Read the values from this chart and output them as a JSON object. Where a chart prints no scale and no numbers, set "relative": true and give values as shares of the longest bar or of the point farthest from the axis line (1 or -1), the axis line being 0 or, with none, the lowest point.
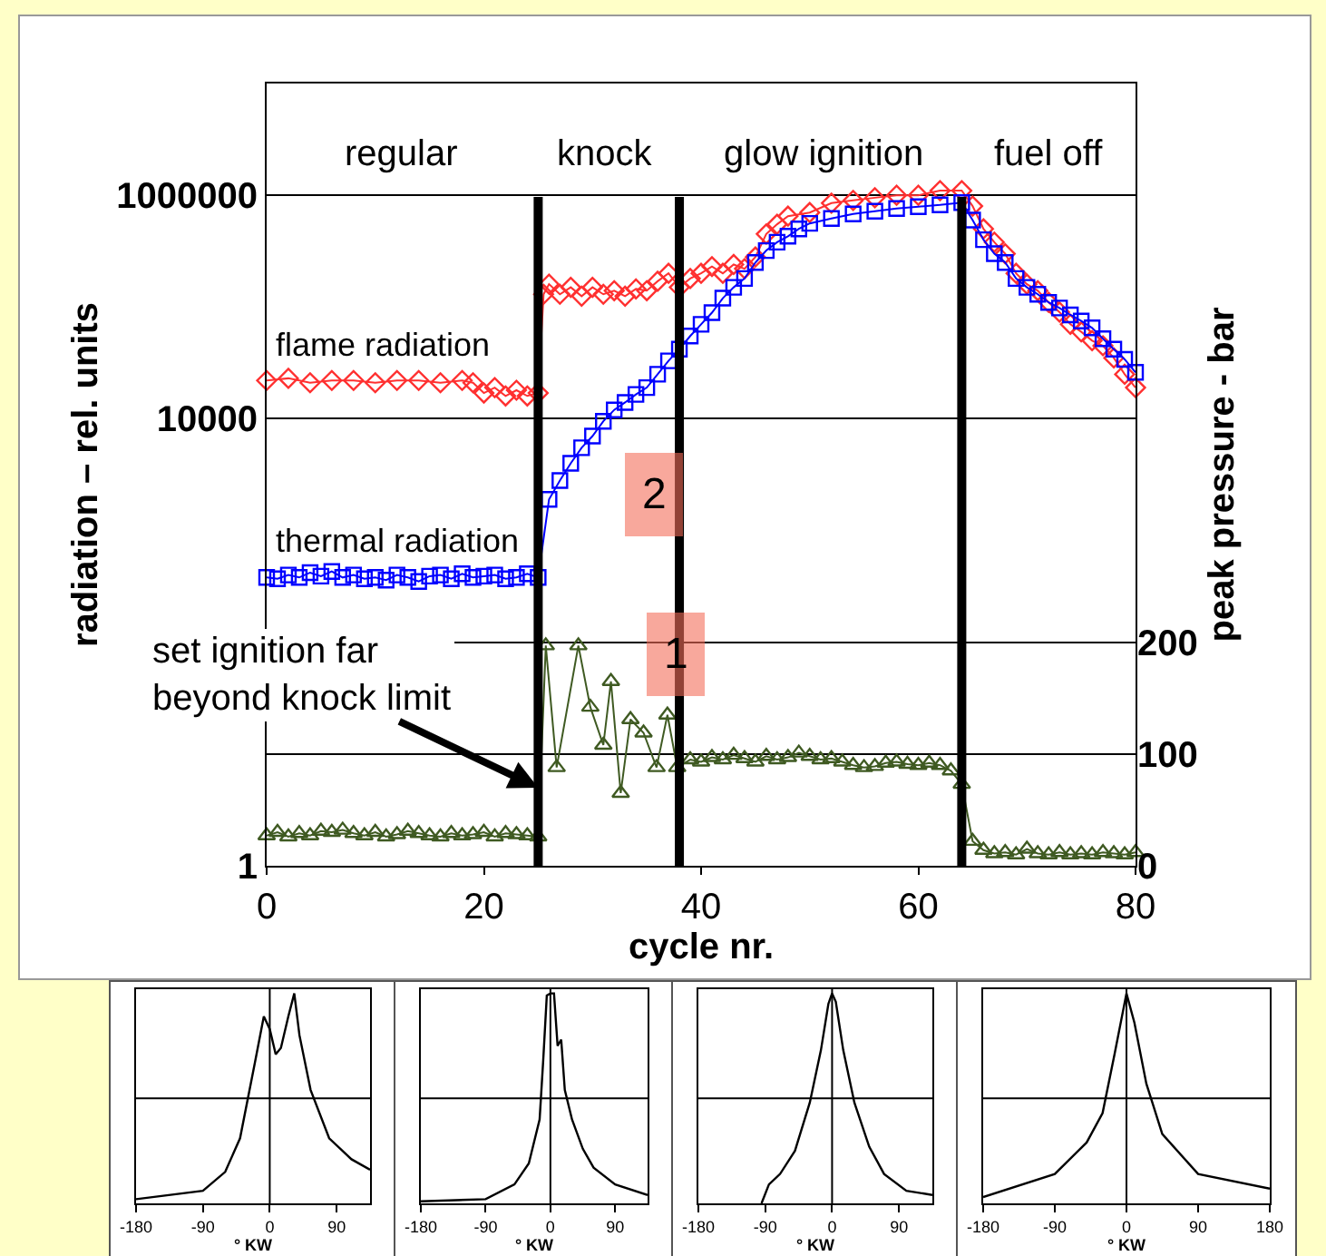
{
  "chart_data": [
    {
      "type": "line",
      "xlabel": "cycle nr.",
      "ylabel": "radiation – rel. units",
      "y2label": "peak pressure - bar",
      "log": "y",
      "xlim": [
        0,
        80
      ],
      "xticks": [
        0,
        20,
        40,
        60,
        80
      ],
      "ylim": [
        1,
        10000000
      ],
      "yticks": [
        1,
        10000,
        1000000
      ],
      "y2lim": [
        0,
        700
      ],
      "y2ticks": [
        0,
        100,
        200
      ],
      "grid": "y",
      "line_style": "solid",
      "series": [
        {
          "name": "flame radiation",
          "color": "#ff3030",
          "marker": "diamond",
          "x": [
            0,
            2,
            4,
            6,
            8,
            10,
            12,
            14,
            16,
            18,
            19,
            20,
            21,
            22,
            23,
            24,
            25,
            25.5,
            26,
            27,
            28,
            29,
            30,
            31,
            32,
            33,
            34,
            35,
            36,
            37,
            38,
            39,
            40,
            41,
            42,
            43,
            44,
            45,
            46,
            47,
            48,
            50,
            52,
            54,
            56,
            58,
            60,
            62,
            64,
            65,
            66,
            67,
            68,
            69,
            70,
            71,
            72,
            73,
            74,
            75,
            76,
            77,
            78,
            79,
            80
          ],
          "values": [
            22000,
            23000,
            21000,
            22000,
            22000,
            21000,
            22000,
            22000,
            21000,
            22000,
            21000,
            17000,
            19000,
            16000,
            18000,
            16000,
            17000,
            130000,
            160000,
            130000,
            150000,
            125000,
            150000,
            130000,
            140000,
            125000,
            145000,
            140000,
            170000,
            200000,
            150000,
            180000,
            200000,
            230000,
            200000,
            240000,
            220000,
            280000,
            450000,
            550000,
            650000,
            700000,
            850000,
            900000,
            950000,
            1000000,
            1000000,
            1100000,
            1100000,
            800000,
            500000,
            380000,
            300000,
            200000,
            160000,
            140000,
            110000,
            90000,
            70000,
            60000,
            50000,
            45000,
            35000,
            25000,
            19000
          ]
        },
        {
          "name": "thermal radiation",
          "color": "#0000ff",
          "marker": "square",
          "x": [
            0,
            1,
            2,
            3,
            4,
            5,
            6,
            7,
            8,
            9,
            10,
            11,
            12,
            13,
            14,
            15,
            16,
            17,
            18,
            19,
            20,
            21,
            22,
            23,
            24,
            25,
            26,
            27,
            28,
            29,
            30,
            31,
            32,
            33,
            34,
            35,
            36,
            37,
            38,
            39,
            40,
            41,
            42,
            43,
            44,
            45,
            46,
            47,
            48,
            49,
            50,
            52,
            54,
            56,
            58,
            60,
            62,
            64,
            65,
            66,
            67,
            68,
            69,
            70,
            71,
            72,
            73,
            74,
            75,
            76,
            77,
            78,
            79,
            80
          ],
          "values": [
            380,
            370,
            400,
            380,
            420,
            390,
            430,
            380,
            400,
            370,
            380,
            360,
            400,
            380,
            350,
            390,
            400,
            370,
            410,
            380,
            390,
            400,
            370,
            380,
            410,
            380,
            1900,
            2800,
            4000,
            5500,
            7000,
            9500,
            12000,
            14000,
            16500,
            19000,
            25000,
            33000,
            42000,
            55000,
            70000,
            89000,
            120000,
            150000,
            180000,
            250000,
            320000,
            380000,
            430000,
            500000,
            560000,
            620000,
            680000,
            720000,
            760000,
            790000,
            820000,
            860000,
            600000,
            400000,
            300000,
            250000,
            180000,
            150000,
            130000,
            110000,
            98000,
            85000,
            75000,
            65000,
            52000,
            42000,
            34000,
            26000
          ]
        },
        {
          "color": "#3f5a22",
          "marker": "triangle",
          "axis": "y2",
          "x": [
            0,
            1,
            2,
            3,
            4,
            5,
            6,
            7,
            8,
            9,
            10,
            11,
            12,
            13,
            14,
            15,
            16,
            17,
            18,
            19,
            20,
            21,
            22,
            23,
            24,
            25,
            25.7,
            26.7,
            28.7,
            29.8,
            31,
            31.7,
            32.6,
            33.5,
            34.7,
            35.9,
            36.9,
            37.8,
            39,
            40,
            41,
            42,
            43,
            44,
            45,
            46,
            47,
            48,
            49,
            50,
            51,
            52,
            53,
            54,
            55,
            56,
            57,
            58,
            59,
            60,
            61,
            62,
            63,
            64,
            65,
            66,
            67,
            68,
            69,
            70,
            71,
            72,
            73,
            74,
            75,
            76,
            77,
            78,
            79,
            80
          ],
          "values": [
            27,
            30,
            26,
            29,
            27,
            31,
            30,
            32,
            29,
            27,
            30,
            26,
            28,
            31,
            29,
            27,
            26,
            29,
            27,
            28,
            30,
            26,
            29,
            28,
            27,
            26,
            197,
            88,
            197,
            142,
            108,
            165,
            65,
            131,
            119,
            88,
            135,
            88,
            95,
            93,
            97,
            95,
            99,
            96,
            93,
            98,
            95,
            97,
            101,
            98,
            95,
            96,
            93,
            90,
            88,
            89,
            92,
            93,
            91,
            90,
            92,
            90,
            85,
            73,
            22,
            14,
            11,
            12,
            10,
            15,
            11,
            10,
            12,
            10,
            11,
            10,
            12,
            11,
            10,
            12
          ]
        }
      ],
      "ref_lines": [
        {
          "axis": "x",
          "value": 25
        },
        {
          "axis": "x",
          "value": 38
        },
        {
          "axis": "x",
          "value": 64
        }
      ],
      "annotations": [
        "regular",
        "knock",
        "glow ignition",
        "fuel off",
        "2",
        "1",
        {
          "text": "set ignition far\nbeyond knock limit",
          "x": 25,
          "y": 5
        }
      ]
    },
    {
      "type": "line",
      "relative": true,
      "xlabel": "° KW",
      "xlim": [
        -180,
        135
      ],
      "xticks": [
        -180,
        -90,
        0,
        90
      ],
      "ref_lines": [
        {
          "axis": "x",
          "value": 0
        },
        {
          "axis": "y",
          "value": 0.5
        }
      ],
      "series": [
        {
          "color": "#000000",
          "x": [
            -180,
            -90,
            -60,
            -40,
            -20,
            -8,
            0,
            8,
            15,
            25,
            33,
            40,
            55,
            80,
            110,
            135
          ],
          "values": [
            0.02,
            0.06,
            0.15,
            0.31,
            0.67,
            0.89,
            0.83,
            0.71,
            0.74,
            0.89,
            1,
            0.8,
            0.54,
            0.31,
            0.21,
            0.16
          ]
        }
      ]
    },
    {
      "type": "line",
      "relative": true,
      "xlabel": "° KW",
      "xlim": [
        -180,
        135
      ],
      "xticks": [
        -180,
        -90,
        0,
        90
      ],
      "ref_lines": [
        {
          "axis": "x",
          "value": 0
        },
        {
          "axis": "y",
          "value": 0.5
        }
      ],
      "series": [
        {
          "color": "#000000",
          "x": [
            -180,
            -90,
            -50,
            -30,
            -15,
            -10,
            -5,
            0,
            5,
            10,
            15,
            20,
            30,
            45,
            60,
            90,
            135
          ],
          "values": [
            0.01,
            0.02,
            0.09,
            0.19,
            0.4,
            0.68,
            0.99,
            1,
            1,
            0.75,
            0.78,
            0.54,
            0.4,
            0.26,
            0.17,
            0.09,
            0.04
          ]
        }
      ]
    },
    {
      "type": "line",
      "relative": true,
      "xlabel": "° KW",
      "xlim": [
        -180,
        135
      ],
      "xticks": [
        -180,
        -90,
        0,
        90
      ],
      "ref_lines": [
        {
          "axis": "x",
          "value": 0
        },
        {
          "axis": "y",
          "value": 0.5
        }
      ],
      "series": [
        {
          "color": "#000000",
          "x": [
            -95,
            -85,
            -70,
            -50,
            -30,
            -15,
            -5,
            0,
            5,
            15,
            30,
            50,
            70,
            100,
            135
          ],
          "values": [
            0,
            0.09,
            0.14,
            0.25,
            0.48,
            0.73,
            0.95,
            1,
            0.96,
            0.73,
            0.48,
            0.27,
            0.14,
            0.06,
            0.04
          ]
        }
      ]
    },
    {
      "type": "line",
      "relative": true,
      "xlabel": "° KW",
      "xlim": [
        -180,
        180
      ],
      "xticks": [
        -180,
        -90,
        0,
        90,
        180
      ],
      "ref_lines": [
        {
          "axis": "x",
          "value": 0
        },
        {
          "axis": "y",
          "value": 0.5
        }
      ],
      "series": [
        {
          "color": "#000000",
          "x": [
            -180,
            -90,
            -50,
            -30,
            -15,
            0,
            10,
            25,
            45,
            90,
            180
          ],
          "values": [
            0.03,
            0.14,
            0.29,
            0.43,
            0.71,
            1,
            0.86,
            0.57,
            0.33,
            0.14,
            0.07
          ]
        }
      ]
    }
  ]
}
